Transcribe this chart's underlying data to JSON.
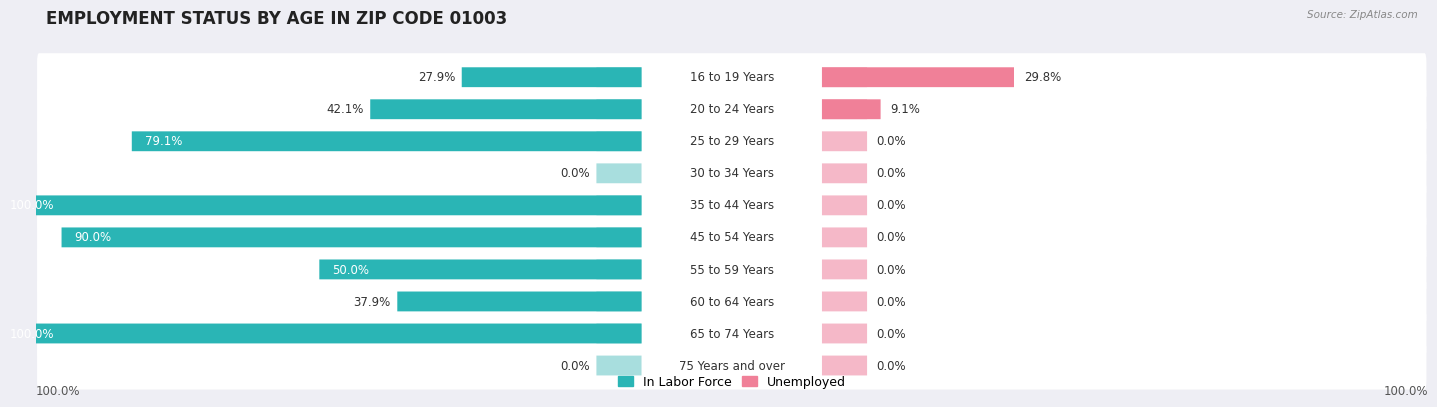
{
  "title": "EMPLOYMENT STATUS BY AGE IN ZIP CODE 01003",
  "source": "Source: ZipAtlas.com",
  "categories": [
    "16 to 19 Years",
    "20 to 24 Years",
    "25 to 29 Years",
    "30 to 34 Years",
    "35 to 44 Years",
    "45 to 54 Years",
    "55 to 59 Years",
    "60 to 64 Years",
    "65 to 74 Years",
    "75 Years and over"
  ],
  "labor_force": [
    27.9,
    42.1,
    79.1,
    0.0,
    100.0,
    90.0,
    50.0,
    37.9,
    100.0,
    0.0
  ],
  "unemployed": [
    29.8,
    9.1,
    0.0,
    0.0,
    0.0,
    0.0,
    0.0,
    0.0,
    0.0,
    0.0
  ],
  "labor_force_color": "#2ab5b5",
  "labor_force_stub_color": "#a8dede",
  "unemployed_color": "#f08098",
  "unemployed_stub_color": "#f5b8c8",
  "bg_color": "#eeeef4",
  "row_bg_color": "#ffffff",
  "row_gap_color": "#dddde8",
  "title_fontsize": 12,
  "label_fontsize": 8.5,
  "cat_fontsize": 8.5,
  "axis_label_fontsize": 8.5,
  "max_value": 100.0,
  "stub_size": 7.0,
  "legend_labels": [
    "In Labor Force",
    "Unemployed"
  ],
  "x_left_label": "100.0%",
  "x_right_label": "100.0%"
}
